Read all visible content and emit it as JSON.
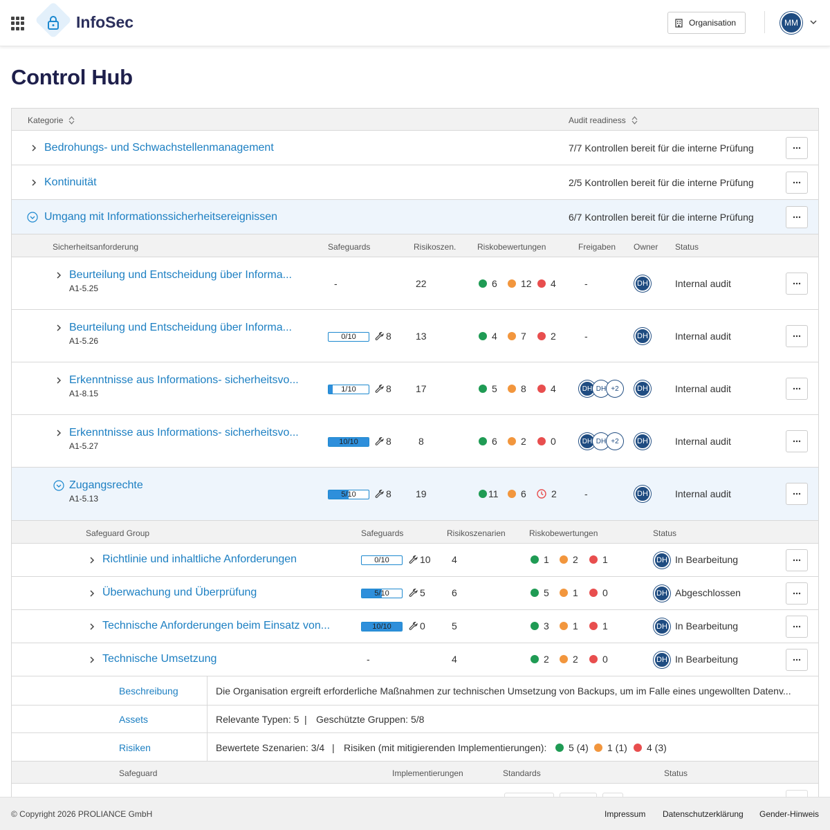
{
  "header": {
    "app_name": "InfoSec",
    "org_button": "Organisation",
    "user_initials": "MM"
  },
  "page": {
    "title": "Control Hub"
  },
  "main_table": {
    "columns": {
      "category": "Kategorie",
      "audit": "Audit readiness"
    },
    "categories": [
      {
        "name": "Bedrohungs- und Schwachstellenmanagement",
        "audit": "7/7 Kontrollen bereit für die interne Prüfung",
        "expanded": false
      },
      {
        "name": "Kontinuität",
        "audit": "2/5 Kontrollen bereit für die interne Prüfung",
        "expanded": false
      },
      {
        "name": "Umgang mit Informationssicherheitsereignissen",
        "audit": "6/7 Kontrollen bereit für die interne Prüfung",
        "expanded": true
      }
    ]
  },
  "requirements": {
    "columns": {
      "req": "Sicherheitsanforderung",
      "safeguards": "Safeguards",
      "scenarios": "Risikoszen.",
      "ratings": "Riskobewertungen",
      "approvals": "Freigaben",
      "owner": "Owner",
      "status": "Status"
    },
    "rows": [
      {
        "title": "Beurteilung und Entscheidung über Informa...",
        "code": "A1-5.25",
        "safeguards": "-",
        "progress": null,
        "wrench": null,
        "scenarios": "22",
        "green": "6",
        "orange": "12",
        "red": "4",
        "approvals": "-",
        "approvers": [],
        "owner": "DH",
        "status": "Internal audit"
      },
      {
        "title": "Beurteilung und Entscheidung über Informa...",
        "code": "A1-5.26",
        "safeguards": "0/10",
        "progress": 0,
        "wrench": "8",
        "scenarios": "13",
        "green": "4",
        "orange": "7",
        "red": "2",
        "approvals": "-",
        "approvers": [],
        "owner": "DH",
        "status": "Internal audit"
      },
      {
        "title": "Erkenntnisse aus Informations- sicherheitsvo...",
        "code": "A1-8.15",
        "safeguards": "1/10",
        "progress": 0.1,
        "wrench": "8",
        "scenarios": "17",
        "green": "5",
        "orange": "8",
        "red": "4",
        "approvals": "",
        "approvers": [
          "DH",
          "DH",
          "+2"
        ],
        "owner": "DH",
        "status": "Internal audit"
      },
      {
        "title": "Erkenntnisse aus Informations- sicherheitsvo...",
        "code": "A1-5.27",
        "safeguards": "10/10",
        "progress": 1,
        "wrench": "8",
        "scenarios": "8",
        "green": "6",
        "orange": "2",
        "red": "0",
        "approvals": "",
        "approvers": [
          "DH",
          "DH",
          "+2"
        ],
        "owner": "DH",
        "status": "Internal audit"
      },
      {
        "title": "Zugangsrechte",
        "code": "A1-5.13",
        "safeguards": "5/10",
        "progress": 0.5,
        "wrench": "8",
        "scenarios": "19",
        "green": "11",
        "orange": "6",
        "red": "2",
        "red_icon": "clock-icon",
        "approvals": "-",
        "approvers": [],
        "owner": "DH",
        "status": "Internal audit",
        "expanded": true
      }
    ]
  },
  "safeguard_groups": {
    "columns": {
      "group": "Safeguard Group",
      "safeguards": "Safeguards",
      "scenarios": "Risikoszenarien",
      "ratings": "Riskobewertungen",
      "status": "Status"
    },
    "rows": [
      {
        "title": "Richtlinie und inhaltliche Anforderungen",
        "safeguards": "0/10",
        "progress": 0,
        "wrench": "10",
        "scenarios": "4",
        "green": "1",
        "orange": "2",
        "red": "1",
        "owner": "DH",
        "status": "In Bearbeitung"
      },
      {
        "title": "Überwachung und Überprüfung",
        "safeguards": "5/10",
        "progress": 0.5,
        "wrench": "5",
        "scenarios": "6",
        "green": "5",
        "orange": "1",
        "red": "0",
        "owner": "DH",
        "status": "Abgeschlossen"
      },
      {
        "title": "Technische Anforderungen beim Einsatz von...",
        "safeguards": "10/10",
        "progress": 1,
        "wrench": "0",
        "scenarios": "5",
        "green": "3",
        "orange": "1",
        "red": "1",
        "owner": "DH",
        "status": "In Bearbeitung"
      },
      {
        "title": "Technische Umsetzung",
        "safeguards": "-",
        "progress": null,
        "wrench": null,
        "scenarios": "4",
        "green": "2",
        "orange": "2",
        "red": "0",
        "owner": "DH",
        "status": "In Bearbeitung"
      }
    ]
  },
  "details": {
    "description_label": "Beschreibung",
    "description": "Die Organisation ergreift erforderliche Maßnahmen zur technischen Umsetzung von Backups, um im Falle eines ungewollten Datenv...",
    "assets_label": "Assets",
    "assets_types": "Relevante Typen: 5",
    "assets_separator": "|",
    "assets_groups": "Geschützte Gruppen: 5/8",
    "risks_label": "Risiken",
    "risks_scenarios": "Bewertete Szenarien: 3/4",
    "risks_separator": "|",
    "risks_mitigated": "Risiken (mit mitigierenden Implementierungen):",
    "risks_green": "5 (4)",
    "risks_orange": "1 (1)",
    "risks_red": "4 (3)"
  },
  "safeguard_list": {
    "columns": {
      "safeguard": "Safeguard",
      "impl": "Implementierungen",
      "standards": "Standards",
      "status": "Status"
    }
  },
  "colors": {
    "link": "#1c7fc2",
    "green": "#1f9b54",
    "orange": "#f2963d",
    "red": "#e84e4e",
    "avatar": "#1f4c81",
    "title": "#1e1f4b"
  },
  "footer": {
    "copyright": "© Copyright 2026 PROLIANCE GmbH",
    "links": [
      "Impressum",
      "Datenschutzerklärung",
      "Gender-Hinweis"
    ]
  }
}
